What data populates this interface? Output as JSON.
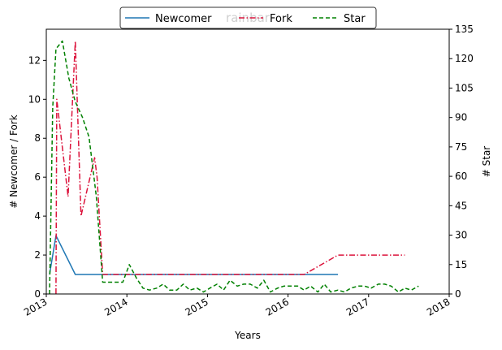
{
  "chart_data": {
    "type": "line",
    "title": "rainbar",
    "xlabel": "Years",
    "ylabel_left": "# Newcomer / Fork",
    "ylabel_right": "# Star",
    "xlim": [
      2013.0,
      2018.0
    ],
    "ylim_left": [
      0,
      13.6
    ],
    "ylim_right": [
      0,
      135
    ],
    "x_ticks": [
      2013,
      2014,
      2015,
      2016,
      2017,
      2018
    ],
    "x_tick_labels": [
      "2013",
      "2014",
      "2015",
      "2016",
      "2017",
      "2018"
    ],
    "y_left_ticks": [
      0,
      2,
      4,
      6,
      8,
      10,
      12
    ],
    "y_left_tick_labels": [
      "0",
      "2",
      "4",
      "6",
      "8",
      "10",
      "12"
    ],
    "y_right_ticks": [
      0,
      15,
      30,
      45,
      60,
      75,
      90,
      105,
      120,
      135
    ],
    "y_right_tick_labels": [
      "0",
      "15",
      "30",
      "45",
      "60",
      "75",
      "90",
      "105",
      "120",
      "135"
    ],
    "grid": false,
    "legend_position": "top-center",
    "series": [
      {
        "name": "Newcomer",
        "axis": "left",
        "color": "#1f77b4",
        "style": "solid",
        "x": [
          2013.04,
          2013.12,
          2013.36,
          2013.7,
          2016.62
        ],
        "y": [
          1,
          3,
          1,
          1,
          1
        ]
      },
      {
        "name": "Fork",
        "axis": "left",
        "color": "#dc143c",
        "style": "dashdot",
        "x": [
          2013.12,
          2013.13,
          2013.27,
          2013.36,
          2013.43,
          2013.6,
          2013.63,
          2013.7,
          2016.2,
          2016.62,
          2017.45
        ],
        "y": [
          0,
          10,
          5,
          13,
          4,
          7,
          6,
          1,
          1,
          2,
          2
        ]
      },
      {
        "name": "Star",
        "axis": "right",
        "color": "#008000",
        "style": "dashed",
        "x": [
          2013.04,
          2013.08,
          2013.12,
          2013.2,
          2013.28,
          2013.36,
          2013.45,
          2013.53,
          2013.62,
          2013.7,
          2013.95,
          2014.03,
          2014.12,
          2014.2,
          2014.28,
          2014.37,
          2014.45,
          2014.53,
          2014.62,
          2014.7,
          2014.78,
          2014.87,
          2014.95,
          2015.03,
          2015.12,
          2015.2,
          2015.28,
          2015.37,
          2015.45,
          2015.53,
          2015.62,
          2015.7,
          2015.78,
          2015.87,
          2015.95,
          2016.03,
          2016.12,
          2016.2,
          2016.28,
          2016.37,
          2016.45,
          2016.53,
          2016.62,
          2016.7,
          2016.78,
          2016.87,
          2016.95,
          2017.03,
          2017.12,
          2017.2,
          2017.28,
          2017.37,
          2017.45,
          2017.53,
          2017.62
        ],
        "y": [
          0,
          95,
          125,
          129,
          110,
          98,
          90,
          80,
          50,
          6,
          6,
          15,
          8,
          3,
          2,
          3,
          5,
          2,
          2,
          5,
          2,
          3,
          1,
          3,
          5,
          2,
          7,
          4,
          5,
          5,
          3,
          7,
          1,
          3,
          4,
          4,
          4,
          2,
          4,
          1,
          5,
          1,
          2,
          1,
          3,
          4,
          4,
          3,
          5,
          5,
          4,
          1,
          3,
          2,
          4
        ]
      }
    ]
  }
}
